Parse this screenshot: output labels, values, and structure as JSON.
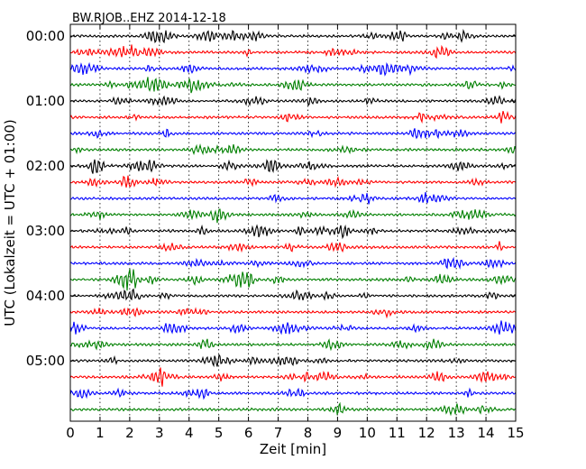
{
  "chart_data": {
    "type": "line",
    "title": "BW.RJOB..EHZ 2014-12-18",
    "xlabel": "Zeit  [min]",
    "ylabel": "UTC (Lokalzeit = UTC + 01:00)",
    "xlim": [
      0,
      15
    ],
    "x_ticks": [
      "0",
      "1",
      "2",
      "3",
      "4",
      "5",
      "6",
      "7",
      "8",
      "9",
      "10",
      "11",
      "12",
      "13",
      "14",
      "15"
    ],
    "y_ticks": [
      "00:00",
      "01:00",
      "02:00",
      "03:00",
      "04:00",
      "05:00"
    ],
    "traces_per_hour": 4,
    "trace_count": 24,
    "minutes_per_trace": 15,
    "grid": "vertical dotted at each minute",
    "series_colors": [
      "#000000",
      "#ff0000",
      "#0000ff",
      "#008000"
    ]
  }
}
